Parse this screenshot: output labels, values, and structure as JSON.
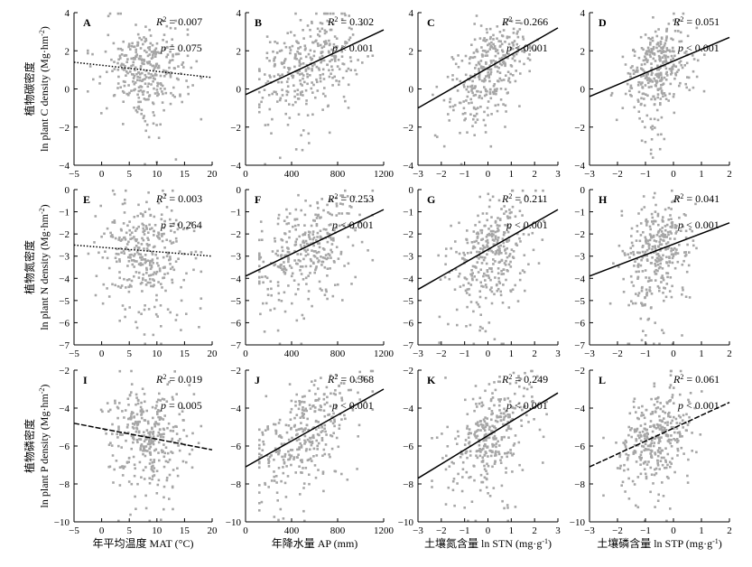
{
  "figure": {
    "rows": [
      {
        "ylabel_cn": "植物碳密度",
        "ylabel_en": "ln plant C density (Mg·hm",
        "ylabel_sup": "-2",
        "ylabel_end": ")"
      },
      {
        "ylabel_cn": "植物氮密度",
        "ylabel_en": "ln plant N density (Mg·hm",
        "ylabel_sup": "-2",
        "ylabel_end": ")"
      },
      {
        "ylabel_cn": "植物磷密度",
        "ylabel_en": "ln plant P density (Mg·hm",
        "ylabel_sup": "-2",
        "ylabel_end": ")"
      }
    ],
    "columns": [
      {
        "xlabel_cn": "年平均温度",
        "xlabel_en": "MAT (°C)",
        "xlabel_sup": ""
      },
      {
        "xlabel_cn": "年降水量",
        "xlabel_en": "AP (mm)",
        "xlabel_sup": ""
      },
      {
        "xlabel_cn": "土壤氮含量",
        "xlabel_en": "ln STN (mg·g",
        "xlabel_sup": "-1",
        "xlabel_end": ")"
      },
      {
        "xlabel_cn": "土壤磷含量",
        "xlabel_en": "ln STP (mg·g",
        "xlabel_sup": "-1",
        "xlabel_end": ")"
      }
    ]
  },
  "chart_data": [
    {
      "panel": "A",
      "type": "scatter",
      "row": 0,
      "col": 0,
      "xlim": [
        -5,
        20
      ],
      "ylim": [
        -4,
        4
      ],
      "xticks": [
        -5,
        0,
        5,
        10,
        15,
        20
      ],
      "yticks": [
        -4,
        -2,
        0,
        2,
        4
      ],
      "r2": "0.007",
      "p": "= 0.075",
      "fit": {
        "x": [
          -5,
          20
        ],
        "y": [
          1.4,
          0.6
        ],
        "style": "dotted"
      },
      "xcenter": 8,
      "xspread": 4,
      "ycenter": 1.2,
      "yspread": 1.1
    },
    {
      "panel": "B",
      "type": "scatter",
      "row": 0,
      "col": 1,
      "xlim": [
        0,
        1200
      ],
      "ylim": [
        -4,
        4
      ],
      "xticks": [
        0,
        400,
        800,
        1200
      ],
      "yticks": [
        -4,
        -2,
        0,
        2,
        4
      ],
      "r2": "0.302",
      "p": "< 0.001",
      "fit": {
        "x": [
          0,
          1200
        ],
        "y": [
          -0.3,
          3.1
        ],
        "style": "solid"
      },
      "xcenter": 520,
      "xspread": 230,
      "ycenter": 1.3,
      "yspread": 1.1
    },
    {
      "panel": "C",
      "type": "scatter",
      "row": 0,
      "col": 2,
      "xlim": [
        -3,
        3
      ],
      "ylim": [
        -4,
        4
      ],
      "xticks": [
        -3,
        -2,
        -1,
        0,
        1,
        2,
        3
      ],
      "yticks": [
        -4,
        -2,
        0,
        2,
        4
      ],
      "r2": "0.266",
      "p": "< 0.001",
      "fit": {
        "x": [
          -3,
          3
        ],
        "y": [
          -1.0,
          3.2
        ],
        "style": "solid"
      },
      "xcenter": 0.1,
      "xspread": 0.9,
      "ycenter": 1.2,
      "yspread": 1.1
    },
    {
      "panel": "D",
      "type": "scatter",
      "row": 0,
      "col": 3,
      "xlim": [
        -3,
        2
      ],
      "ylim": [
        -4,
        4
      ],
      "xticks": [
        -3,
        -2,
        -1,
        0,
        1,
        2
      ],
      "yticks": [
        -4,
        -2,
        0,
        2,
        4
      ],
      "r2": "0.051",
      "p": "< 0.001",
      "fit": {
        "x": [
          -3,
          2
        ],
        "y": [
          -0.4,
          2.7
        ],
        "style": "solid"
      },
      "xcenter": -0.6,
      "xspread": 0.6,
      "ycenter": 1.2,
      "yspread": 1.1
    },
    {
      "panel": "E",
      "type": "scatter",
      "row": 1,
      "col": 0,
      "xlim": [
        -5,
        20
      ],
      "ylim": [
        -7,
        0
      ],
      "xticks": [
        -5,
        0,
        5,
        10,
        15,
        20
      ],
      "yticks": [
        -7,
        -6,
        -5,
        -4,
        -3,
        -2,
        -1,
        0
      ],
      "r2": "0.003",
      "p": "= 0.264",
      "fit": {
        "x": [
          -5,
          20
        ],
        "y": [
          -2.5,
          -3.0
        ],
        "style": "dotted"
      },
      "xcenter": 8,
      "xspread": 4,
      "ycenter": -2.7,
      "yspread": 1.1
    },
    {
      "panel": "F",
      "type": "scatter",
      "row": 1,
      "col": 1,
      "xlim": [
        0,
        1200
      ],
      "ylim": [
        -7,
        0
      ],
      "xticks": [
        0,
        400,
        800,
        1200
      ],
      "yticks": [
        -7,
        -6,
        -5,
        -4,
        -3,
        -2,
        -1,
        0
      ],
      "r2": "0.253",
      "p": "< 0.001",
      "fit": {
        "x": [
          0,
          1200
        ],
        "y": [
          -3.9,
          -0.9
        ],
        "style": "solid"
      },
      "xcenter": 520,
      "xspread": 230,
      "ycenter": -2.6,
      "yspread": 1.1
    },
    {
      "panel": "G",
      "type": "scatter",
      "row": 1,
      "col": 2,
      "xlim": [
        -3,
        3
      ],
      "ylim": [
        -7,
        0
      ],
      "xticks": [
        -3,
        -2,
        -1,
        0,
        1,
        2,
        3
      ],
      "yticks": [
        -7,
        -6,
        -5,
        -4,
        -3,
        -2,
        -1,
        0
      ],
      "r2": "0.211",
      "p": "< 0.001",
      "fit": {
        "x": [
          -3,
          3
        ],
        "y": [
          -4.5,
          -0.9
        ],
        "style": "solid"
      },
      "xcenter": 0.1,
      "xspread": 0.9,
      "ycenter": -2.6,
      "yspread": 1.1
    },
    {
      "panel": "H",
      "type": "scatter",
      "row": 1,
      "col": 3,
      "xlim": [
        -3,
        2
      ],
      "ylim": [
        -7,
        0
      ],
      "xticks": [
        -3,
        -2,
        -1,
        0,
        1,
        2
      ],
      "yticks": [
        -7,
        -6,
        -5,
        -4,
        -3,
        -2,
        -1,
        0
      ],
      "r2": "0.041",
      "p": "< 0.001",
      "fit": {
        "x": [
          -3,
          2
        ],
        "y": [
          -3.9,
          -1.5
        ],
        "style": "solid"
      },
      "xcenter": -0.6,
      "xspread": 0.6,
      "ycenter": -2.7,
      "yspread": 1.1
    },
    {
      "panel": "I",
      "type": "scatter",
      "row": 2,
      "col": 0,
      "xlim": [
        -5,
        20
      ],
      "ylim": [
        -10,
        -2
      ],
      "xticks": [
        -5,
        0,
        5,
        10,
        15,
        20
      ],
      "yticks": [
        -10,
        -8,
        -6,
        -4,
        -2
      ],
      "r2": "0.019",
      "p": "= 0.005",
      "fit": {
        "x": [
          -5,
          20
        ],
        "y": [
          -4.8,
          -6.2
        ],
        "style": "dashed"
      },
      "xcenter": 8,
      "xspread": 4,
      "ycenter": -5.2,
      "yspread": 1.2
    },
    {
      "panel": "J",
      "type": "scatter",
      "row": 2,
      "col": 1,
      "xlim": [
        0,
        1200
      ],
      "ylim": [
        -10,
        -2
      ],
      "xticks": [
        0,
        400,
        800,
        1200
      ],
      "yticks": [
        -10,
        -8,
        -6,
        -4,
        -2
      ],
      "r2": "0.368",
      "p": "< 0.001",
      "fit": {
        "x": [
          0,
          1200
        ],
        "y": [
          -7.1,
          -3.0
        ],
        "style": "solid"
      },
      "xcenter": 520,
      "xspread": 230,
      "ycenter": -5.2,
      "yspread": 1.2
    },
    {
      "panel": "K",
      "type": "scatter",
      "row": 2,
      "col": 2,
      "xlim": [
        -3,
        3
      ],
      "ylim": [
        -10,
        -2
      ],
      "xticks": [
        -3,
        -2,
        -1,
        0,
        1,
        2,
        3
      ],
      "yticks": [
        -10,
        -8,
        -6,
        -4,
        -2
      ],
      "r2": "0.249",
      "p": "< 0.001",
      "fit": {
        "x": [
          -3,
          3
        ],
        "y": [
          -7.7,
          -3.2
        ],
        "style": "solid"
      },
      "xcenter": 0.1,
      "xspread": 0.9,
      "ycenter": -5.2,
      "yspread": 1.2
    },
    {
      "panel": "L",
      "type": "scatter",
      "row": 2,
      "col": 3,
      "xlim": [
        -3,
        2
      ],
      "ylim": [
        -10,
        -2
      ],
      "xticks": [
        -3,
        -2,
        -1,
        0,
        1,
        2
      ],
      "yticks": [
        -10,
        -8,
        -6,
        -4,
        -2
      ],
      "r2": "0.061",
      "p": "< 0.001",
      "fit": {
        "x": [
          -3,
          2
        ],
        "y": [
          -7.1,
          -3.7
        ],
        "style": "dashed"
      },
      "xcenter": -0.6,
      "xspread": 0.6,
      "ycenter": -5.2,
      "yspread": 1.2
    }
  ],
  "colors": {
    "points": "#a6a6a6",
    "axis": "#000000",
    "fit": "#000000"
  }
}
